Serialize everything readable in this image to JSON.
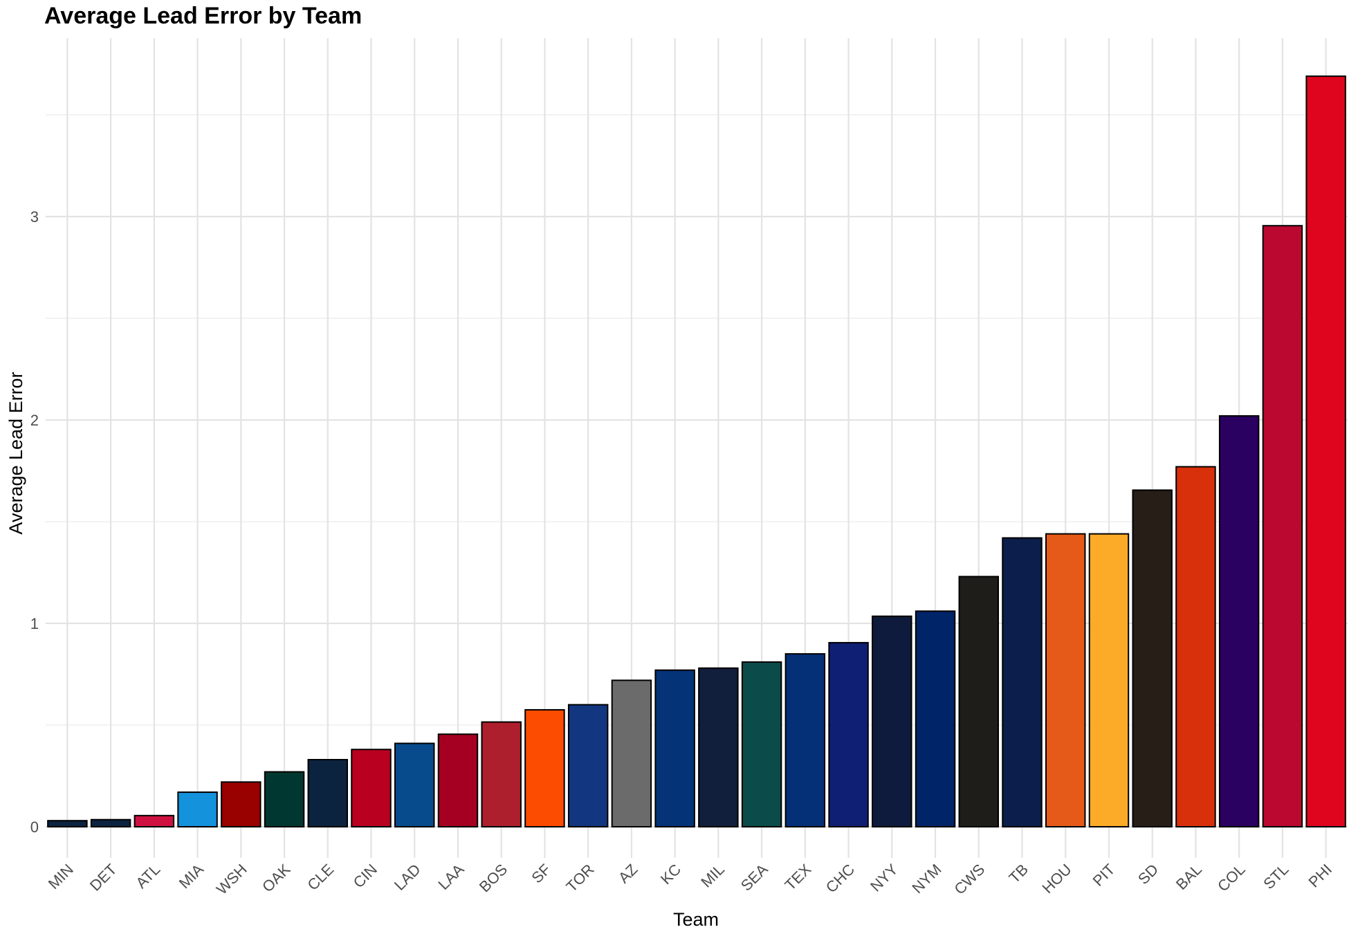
{
  "chart_data": {
    "type": "bar",
    "title": "Average Lead Error by Team",
    "xlabel": "Team",
    "ylabel": "Average Lead Error",
    "categories": [
      "MIN",
      "DET",
      "ATL",
      "MIA",
      "WSH",
      "OAK",
      "CLE",
      "CIN",
      "LAD",
      "LAA",
      "BOS",
      "SF",
      "TOR",
      "AZ",
      "KC",
      "MIL",
      "SEA",
      "TEX",
      "CHC",
      "NYY",
      "NYM",
      "CWS",
      "TB",
      "HOU",
      "PIT",
      "SD",
      "BAL",
      "COL",
      "STL",
      "PHI"
    ],
    "values": [
      0.03,
      0.035,
      0.055,
      0.17,
      0.22,
      0.27,
      0.33,
      0.38,
      0.41,
      0.455,
      0.515,
      0.575,
      0.6,
      0.72,
      0.77,
      0.78,
      0.81,
      0.85,
      0.905,
      1.035,
      1.06,
      1.23,
      1.42,
      1.44,
      1.44,
      1.655,
      1.77,
      2.02,
      2.955,
      3.69
    ],
    "colors": [
      "#0C2340",
      "#0C2340",
      "#CE1141",
      "#1492DB",
      "#990000",
      "#003831",
      "#0C2340",
      "#BA0021",
      "#074B8C",
      "#A50021",
      "#AE1F2D",
      "#FC4C02",
      "#123780",
      "#6B6B6B",
      "#043378",
      "#111E3C",
      "#0B4C4A",
      "#043078",
      "#0E1F74",
      "#0F1B3C",
      "#002468",
      "#1F1D1A",
      "#0C1F4C",
      "#E55A19",
      "#FBAB27",
      "#261E17",
      "#D8300B",
      "#2A0060",
      "#BA0830",
      "#E0051F"
    ],
    "yticks": [
      0,
      1,
      2,
      3
    ],
    "ylim": [
      -0.1,
      3.9
    ],
    "grid": true,
    "legend": "none"
  }
}
